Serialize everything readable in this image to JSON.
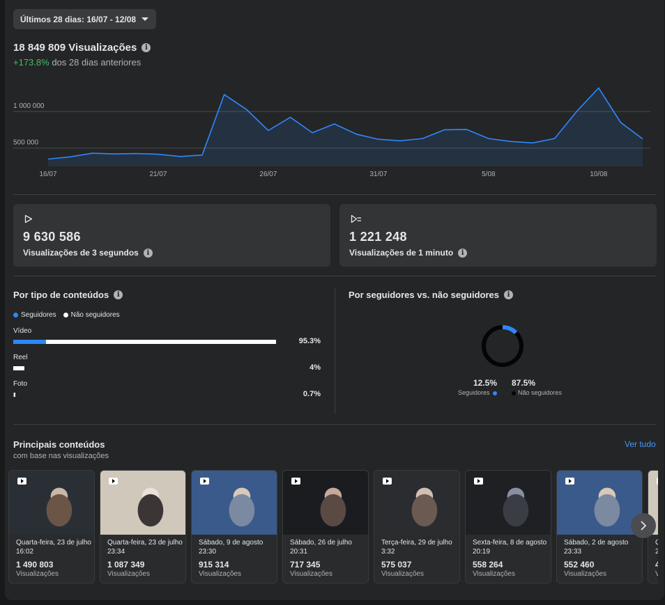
{
  "date_range": {
    "label": "Últimos 28 dias: 16/07 - 12/08"
  },
  "summary": {
    "total": "18 849 809 Visualizações",
    "change": "+173.8%",
    "change_suffix": "dos 28 dias anteriores"
  },
  "chart_data": {
    "type": "area",
    "x": [
      "16/07",
      "17/07",
      "18/07",
      "19/07",
      "20/07",
      "21/07",
      "22/07",
      "23/07",
      "24/07",
      "25/07",
      "26/07",
      "27/07",
      "28/07",
      "29/07",
      "30/07",
      "31/07",
      "01/08",
      "02/08",
      "03/08",
      "04/08",
      "05/08",
      "06/08",
      "07/08",
      "08/08",
      "09/08",
      "10/08",
      "11/08",
      "12/08"
    ],
    "values": [
      350000,
      380000,
      430000,
      420000,
      425000,
      415000,
      385000,
      405000,
      1230000,
      1030000,
      740000,
      920000,
      710000,
      830000,
      690000,
      620000,
      600000,
      630000,
      750000,
      755000,
      630000,
      590000,
      570000,
      630000,
      1000000,
      1320000,
      850000,
      625000
    ],
    "x_tick_labels": [
      "16/07",
      "21/07",
      "26/07",
      "31/07",
      "5/08",
      "10/08"
    ],
    "y_tick_labels": [
      "1 000 000",
      "500 000"
    ],
    "ylim": [
      250000,
      1400000
    ],
    "grid": true,
    "color": "#2d88ff"
  },
  "stats": {
    "three_sec": {
      "value": "9 630 586",
      "label": "Visualizações de 3 segundos",
      "icon": "play-icon"
    },
    "one_min": {
      "value": "1 221 248",
      "label": "Visualizações de 1 minuto",
      "icon": "play-list-icon"
    }
  },
  "content_type": {
    "title": "Por tipo de conteúdos",
    "legend_followers": "Seguidores",
    "legend_non_followers": "Não seguidores",
    "follower_color": "#2d88ff",
    "non_follower_color": "#ffffff",
    "rows": [
      {
        "label": "Vídeo",
        "pct": "95.3%",
        "total": 0.953,
        "followers": 0.125
      },
      {
        "label": "Reel",
        "pct": "4%",
        "total": 0.04,
        "followers": 0.0
      },
      {
        "label": "Foto",
        "pct": "0.7%",
        "total": 0.007,
        "followers": 0.4
      }
    ]
  },
  "followers_split": {
    "title": "Por seguidores vs. não seguidores",
    "followers_pct": "12.5%",
    "followers_label": "Seguidores",
    "non_followers_pct": "87.5%",
    "non_followers_label": "Não seguidores",
    "followers_fraction": 0.125
  },
  "top_content": {
    "title": "Principais conteúdos",
    "subtitle": "com base nas visualizações",
    "see_all": "Ver tudo",
    "views_label": "Visualizações",
    "items": [
      {
        "date": "Quarta-feira, 23 de julho",
        "time": "16:02",
        "views": "1 490 803"
      },
      {
        "date": "Quarta-feira, 23 de julho",
        "time": "23:34",
        "views": "1 087 349"
      },
      {
        "date": "Sábado, 9 de agosto",
        "time": "23:30",
        "views": "915 314"
      },
      {
        "date": "Sábado, 26 de julho",
        "time": "20:31",
        "views": "717 345"
      },
      {
        "date": "Terça-feira, 29 de julho",
        "time": "3:32",
        "views": "575 037"
      },
      {
        "date": "Sexta-feira, 8 de agosto",
        "time": "20:19",
        "views": "558 264"
      },
      {
        "date": "Sábado, 2 de agosto",
        "time": "23:33",
        "views": "552 460"
      },
      {
        "date": "Q",
        "time": "2",
        "views": "4"
      }
    ]
  }
}
